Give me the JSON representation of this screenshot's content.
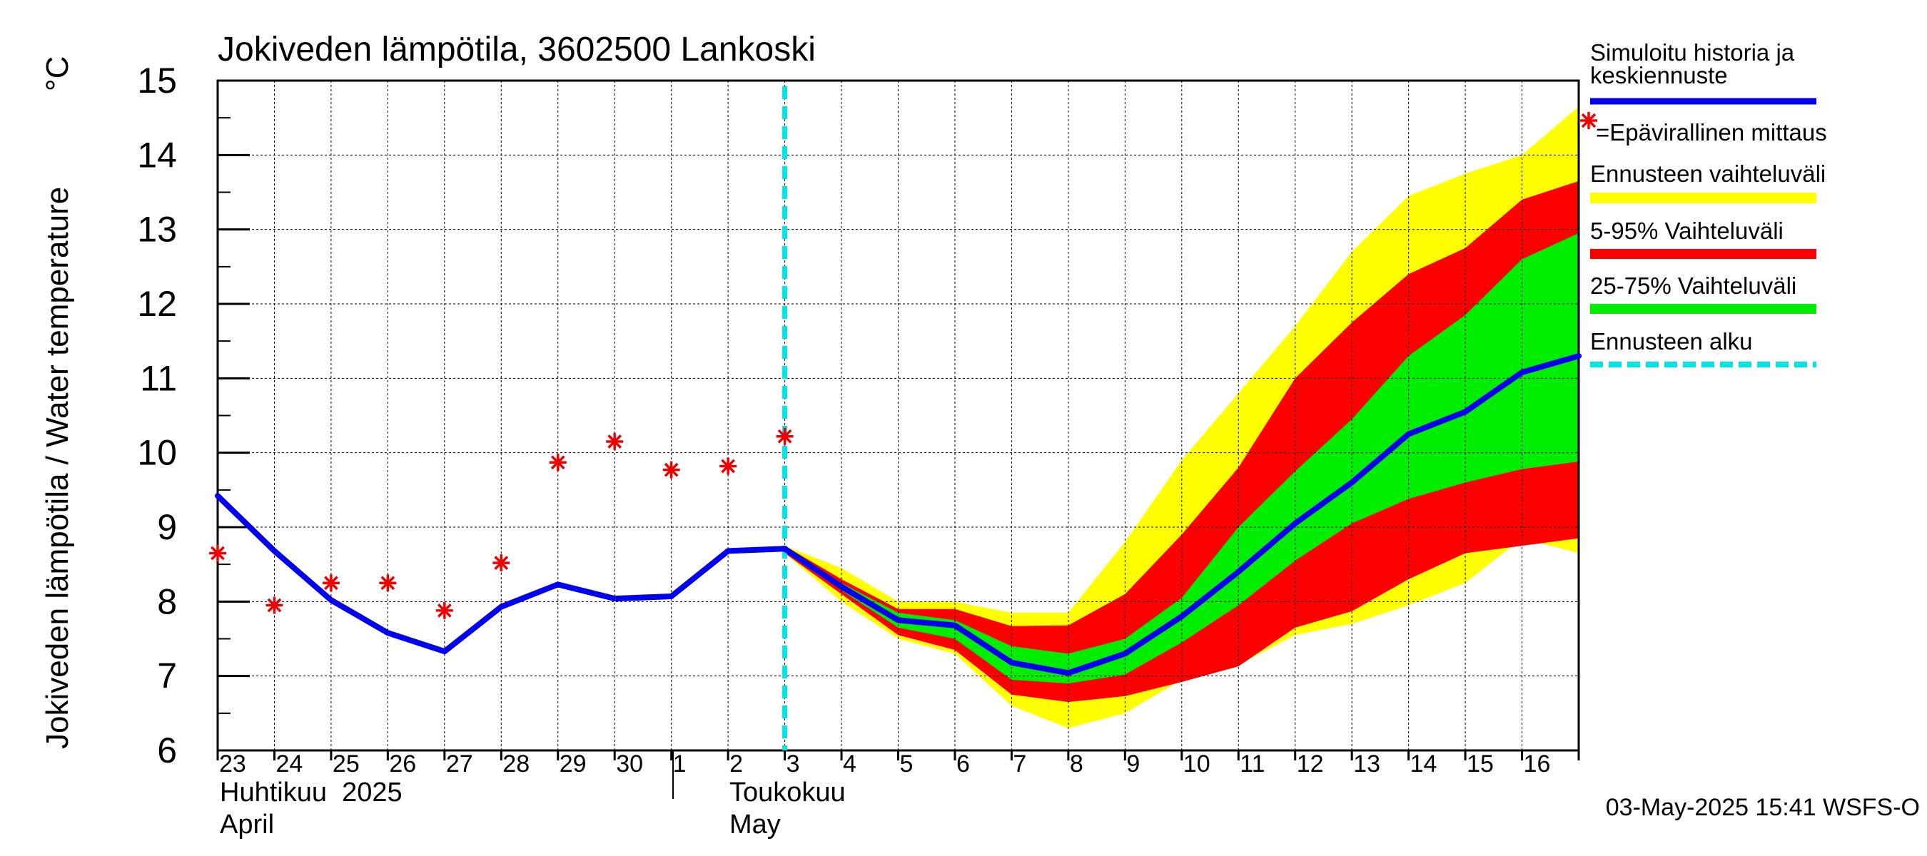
{
  "chart_data": {
    "type": "line",
    "title": "Jokiveden lämpötila, 3602500 Lankoski",
    "ylabel": "Jokiveden lämpötila / Water temperature",
    "yunit": "°C",
    "ylim": [
      6,
      15
    ],
    "yticks": [
      6,
      7,
      8,
      9,
      10,
      11,
      12,
      13,
      14,
      15
    ],
    "grid": true,
    "x_day_labels": [
      "23",
      "24",
      "25",
      "26",
      "27",
      "28",
      "29",
      "30",
      "1",
      "2",
      "3",
      "4",
      "5",
      "6",
      "7",
      "8",
      "9",
      "10",
      "11",
      "12",
      "13",
      "14",
      "15",
      "16"
    ],
    "x_range_days": [
      0,
      24
    ],
    "month_labels": [
      {
        "fi": "Huhtikuu  2025",
        "en": "April"
      },
      {
        "fi": "Toukokuu",
        "en": "May"
      }
    ],
    "forecast_start_day": 10.0,
    "timestamp": "03-May-2025 15:41 WSFS-O",
    "colors": {
      "simulated": "#0000ee",
      "observed": "#ee0000",
      "range_full": "#ffff00",
      "range_5_95": "#ff0000",
      "range_25_75": "#00ee00",
      "forecast_start": "#00e5e5"
    },
    "legend": [
      {
        "label": "Simuloitu historia ja keskiennuste",
        "kind": "line",
        "color": "#0000ee"
      },
      {
        "label": "=Epävirallinen mittaus",
        "kind": "marker",
        "color": "#ee0000"
      },
      {
        "label": "Ennusteen vaihteluväli",
        "kind": "band",
        "color": "#ffff00"
      },
      {
        "label": "5-95% Vaihteluväli",
        "kind": "band",
        "color": "#ff0000"
      },
      {
        "label": "25-75% Vaihteluväli",
        "kind": "band",
        "color": "#00ee00"
      },
      {
        "label": "Ennusteen alku",
        "kind": "dash",
        "color": "#00e5e5"
      }
    ],
    "series": [
      {
        "name": "Simuloitu historia ja keskiennuste",
        "x": [
          0,
          1,
          2,
          3,
          4,
          5,
          6,
          7,
          8,
          9,
          10,
          11,
          12,
          13,
          14,
          15,
          16,
          17,
          18,
          19,
          20,
          21,
          22,
          23,
          24
        ],
        "y": [
          9.42,
          8.68,
          8.02,
          7.58,
          7.33,
          7.93,
          8.23,
          8.04,
          8.07,
          8.68,
          8.71,
          8.2,
          7.75,
          7.68,
          7.18,
          7.04,
          7.3,
          7.8,
          8.4,
          9.05,
          9.6,
          10.25,
          10.55,
          11.08,
          11.3
        ]
      },
      {
        "name": "=Epävirallinen mittaus",
        "x": [
          0,
          1,
          2,
          3,
          4,
          5,
          6,
          7,
          8,
          9,
          10
        ],
        "y": [
          8.65,
          7.95,
          8.25,
          8.25,
          7.88,
          8.52,
          9.87,
          10.15,
          9.77,
          9.82,
          10.22
        ]
      }
    ],
    "bands": {
      "x": [
        10,
        11,
        12,
        13,
        14,
        15,
        16,
        17,
        18,
        19,
        20,
        21,
        22,
        23,
        24
      ],
      "full_upper": [
        8.75,
        8.45,
        8.0,
        8.0,
        7.85,
        7.85,
        8.8,
        9.9,
        10.8,
        11.7,
        12.7,
        13.45,
        13.75,
        14.0,
        14.65
      ],
      "full_lower": [
        8.65,
        8.0,
        7.5,
        7.3,
        6.6,
        6.3,
        6.5,
        6.95,
        7.15,
        7.55,
        7.7,
        7.95,
        8.25,
        8.85,
        8.65
      ],
      "p95": [
        8.75,
        8.3,
        7.9,
        7.9,
        7.67,
        7.68,
        8.1,
        8.9,
        9.8,
        11.0,
        11.75,
        12.4,
        12.75,
        13.4,
        13.65
      ],
      "p5": [
        8.65,
        8.1,
        7.55,
        7.35,
        6.75,
        6.65,
        6.73,
        6.92,
        7.13,
        7.65,
        7.87,
        8.3,
        8.65,
        8.75,
        8.85
      ],
      "p75": [
        8.72,
        8.25,
        7.85,
        7.75,
        7.4,
        7.3,
        7.5,
        8.05,
        9.0,
        9.75,
        10.45,
        11.3,
        11.85,
        12.6,
        12.95
      ],
      "p25": [
        8.7,
        8.15,
        7.65,
        7.5,
        6.95,
        6.9,
        7.02,
        7.45,
        7.95,
        8.55,
        9.05,
        9.38,
        9.6,
        9.78,
        9.88
      ]
    }
  }
}
